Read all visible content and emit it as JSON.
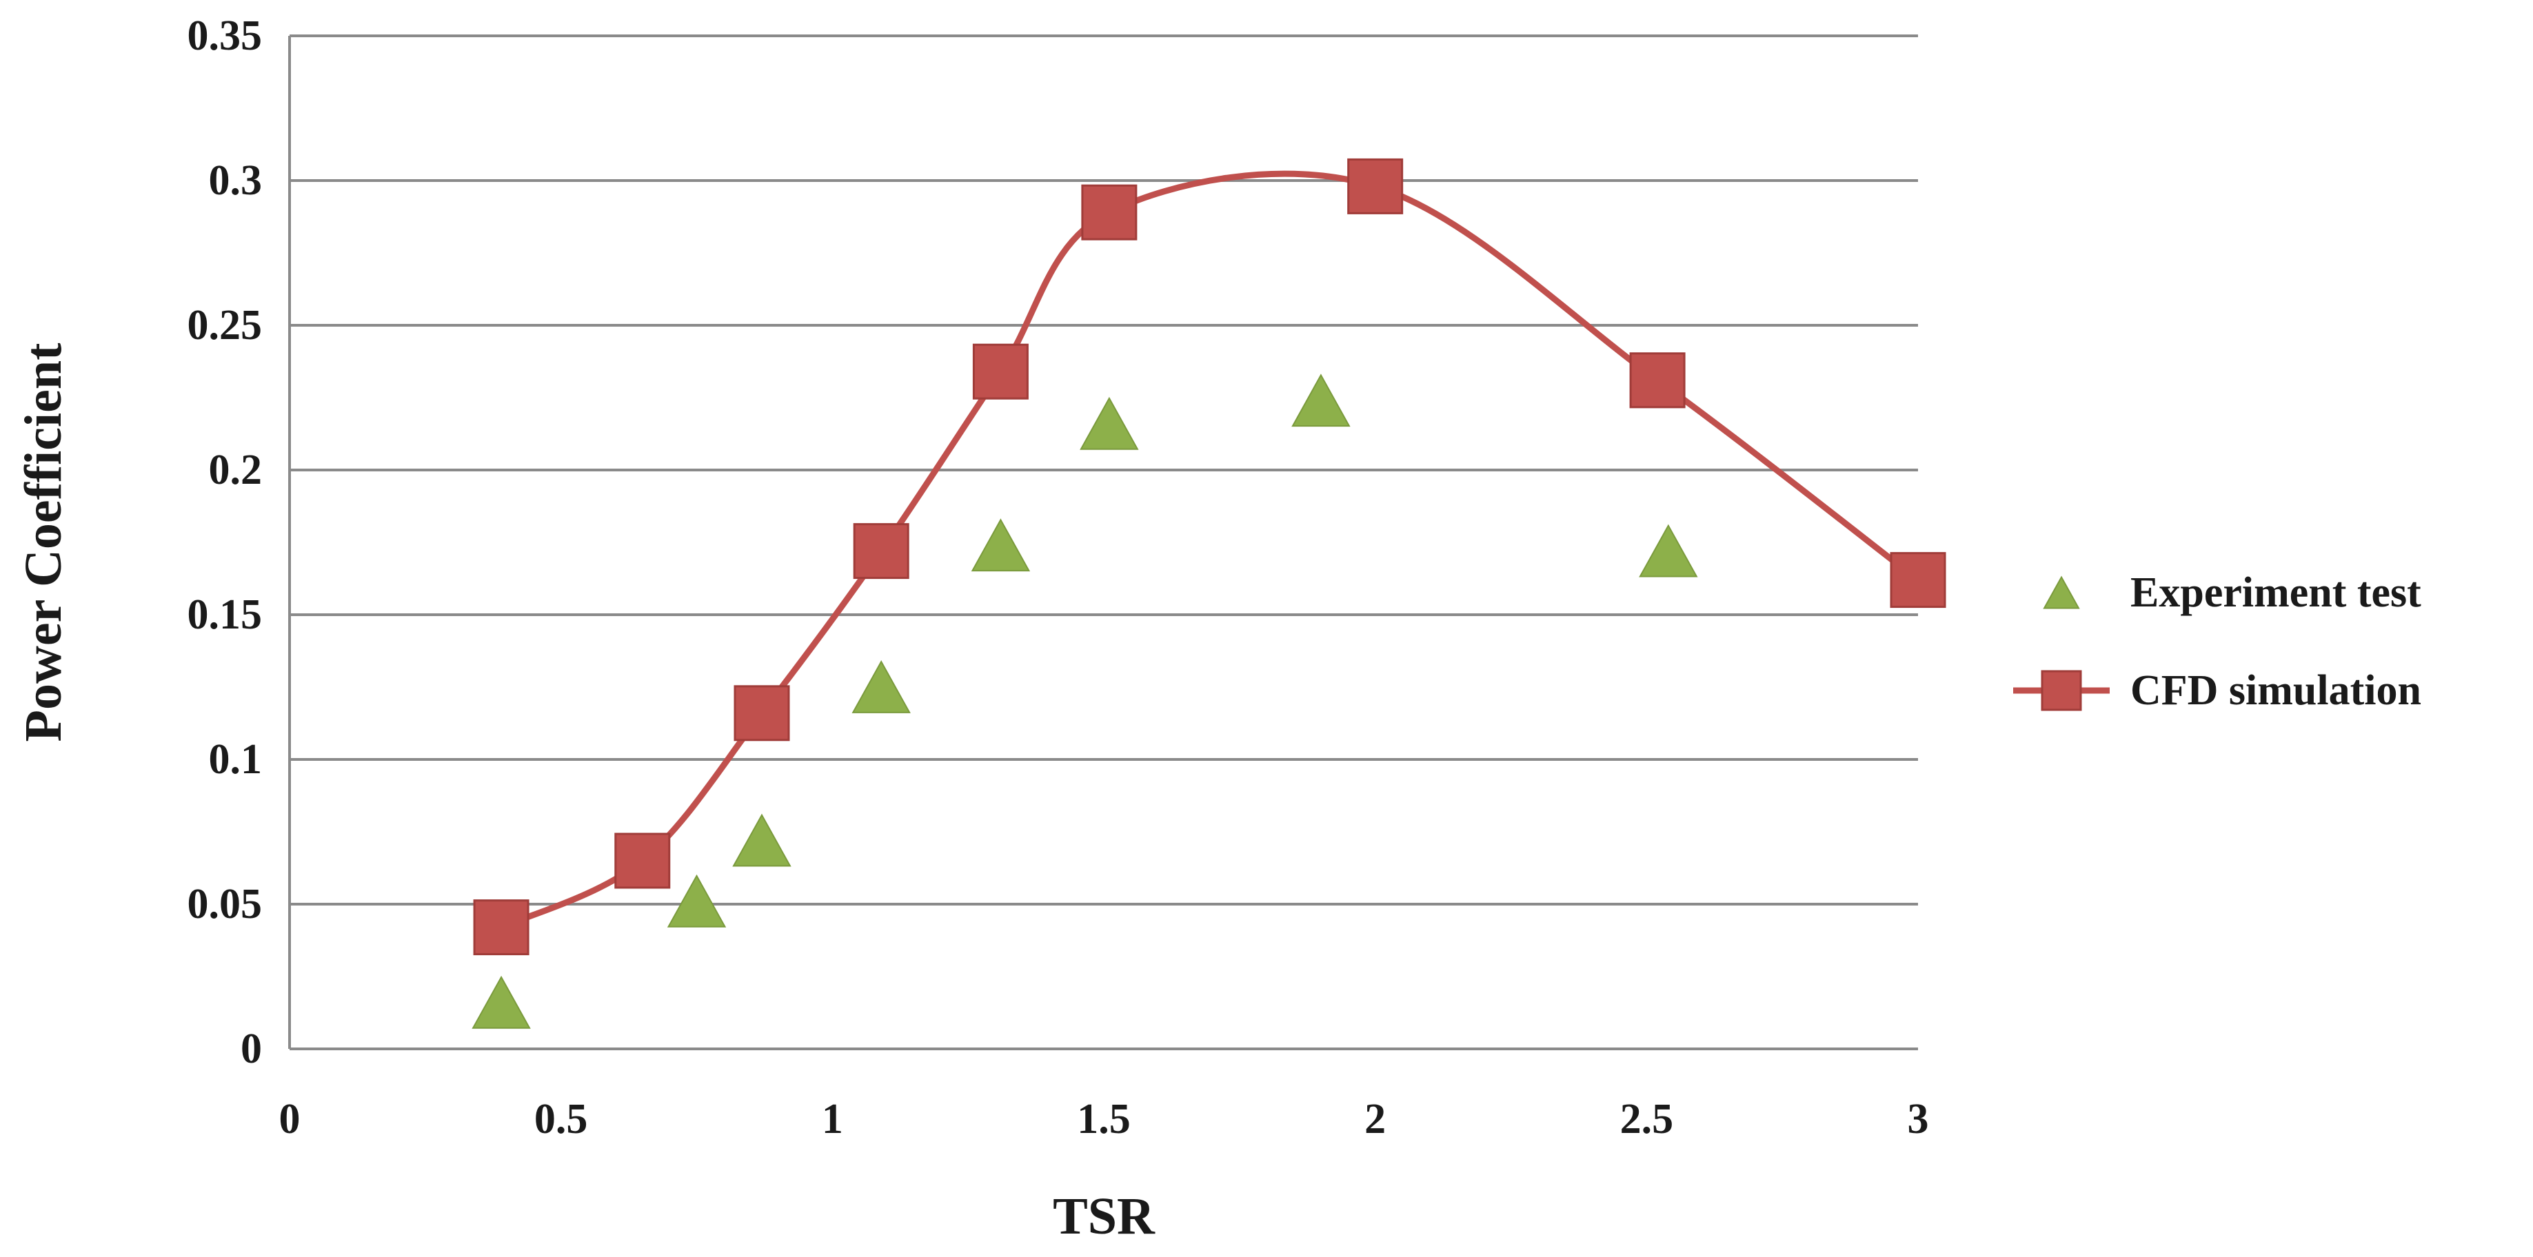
{
  "chart_data": {
    "type": "line",
    "title": "",
    "xlabel": "TSR",
    "ylabel": "Power Coefficient",
    "xlim": [
      0,
      3
    ],
    "ylim": [
      0,
      0.35
    ],
    "x_ticks": [
      "0",
      "0.5",
      "1",
      "1.5",
      "2",
      "2.5",
      "3"
    ],
    "y_ticks": [
      "0",
      "0.05",
      "0.1",
      "0.15",
      "0.2",
      "0.25",
      "0.3",
      "0.35"
    ],
    "grid": "horizontal",
    "legend_position": "right",
    "series": [
      {
        "name": "Experiment test",
        "marker": "triangle",
        "line": false,
        "color": "#8db04a",
        "x": [
          0.39,
          0.75,
          0.87,
          1.09,
          1.31,
          1.51,
          1.9,
          2.54
        ],
        "y": [
          0.016,
          0.051,
          0.072,
          0.125,
          0.174,
          0.216,
          0.224,
          0.172
        ]
      },
      {
        "name": "CFD simulation",
        "marker": "square",
        "line": true,
        "smooth": true,
        "color": "#c0504d",
        "x": [
          0.39,
          0.65,
          0.87,
          1.09,
          1.31,
          1.51,
          2.0,
          2.52,
          3.0
        ],
        "y": [
          0.042,
          0.065,
          0.116,
          0.172,
          0.234,
          0.289,
          0.298,
          0.231,
          0.162
        ]
      }
    ]
  }
}
